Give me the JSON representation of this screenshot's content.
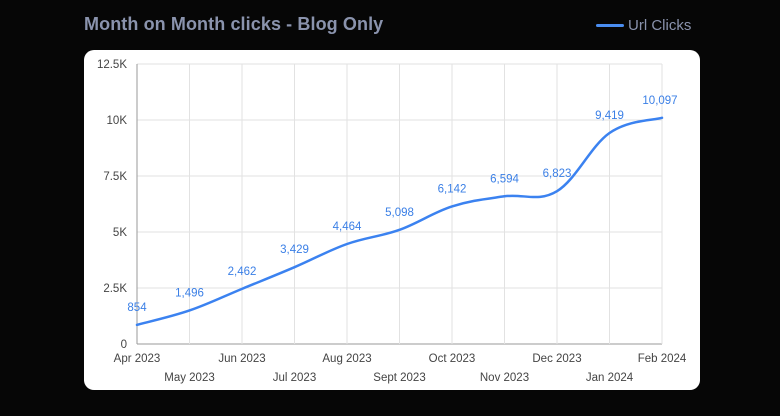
{
  "header": {
    "title": "Month on Month clicks - Blog Only",
    "legend_label": "Url Clicks"
  },
  "colors": {
    "series": "#3b82f0",
    "grid": "#e2e2e2",
    "background": "#060606",
    "card": "#ffffff"
  },
  "chart_data": {
    "type": "line",
    "title": "Month on Month clicks - Blog Only",
    "xlabel": "",
    "ylabel": "",
    "categories": [
      "Apr 2023",
      "May 2023",
      "Jun 2023",
      "Jul 2023",
      "Aug 2023",
      "Sept 2023",
      "Oct 2023",
      "Nov 2023",
      "Dec 2023",
      "Jan 2024",
      "Feb 2024"
    ],
    "series": [
      {
        "name": "Url Clicks",
        "values": [
          854,
          1496,
          2462,
          3429,
          4464,
          5098,
          6142,
          6594,
          6823,
          9419,
          10097
        ],
        "labels": [
          "854",
          "1,496",
          "2,462",
          "3,429",
          "4,464",
          "5,098",
          "6,142",
          "6,594",
          "6,823",
          "9,419",
          "10,097"
        ]
      }
    ],
    "ylim": [
      0,
      12500
    ],
    "yticks": [
      0,
      2500,
      5000,
      7500,
      10000,
      12500
    ],
    "ytick_labels": [
      "0",
      "2.5K",
      "5K",
      "7.5K",
      "10K",
      "12.5K"
    ],
    "grid": true,
    "legend_position": "top-right"
  }
}
